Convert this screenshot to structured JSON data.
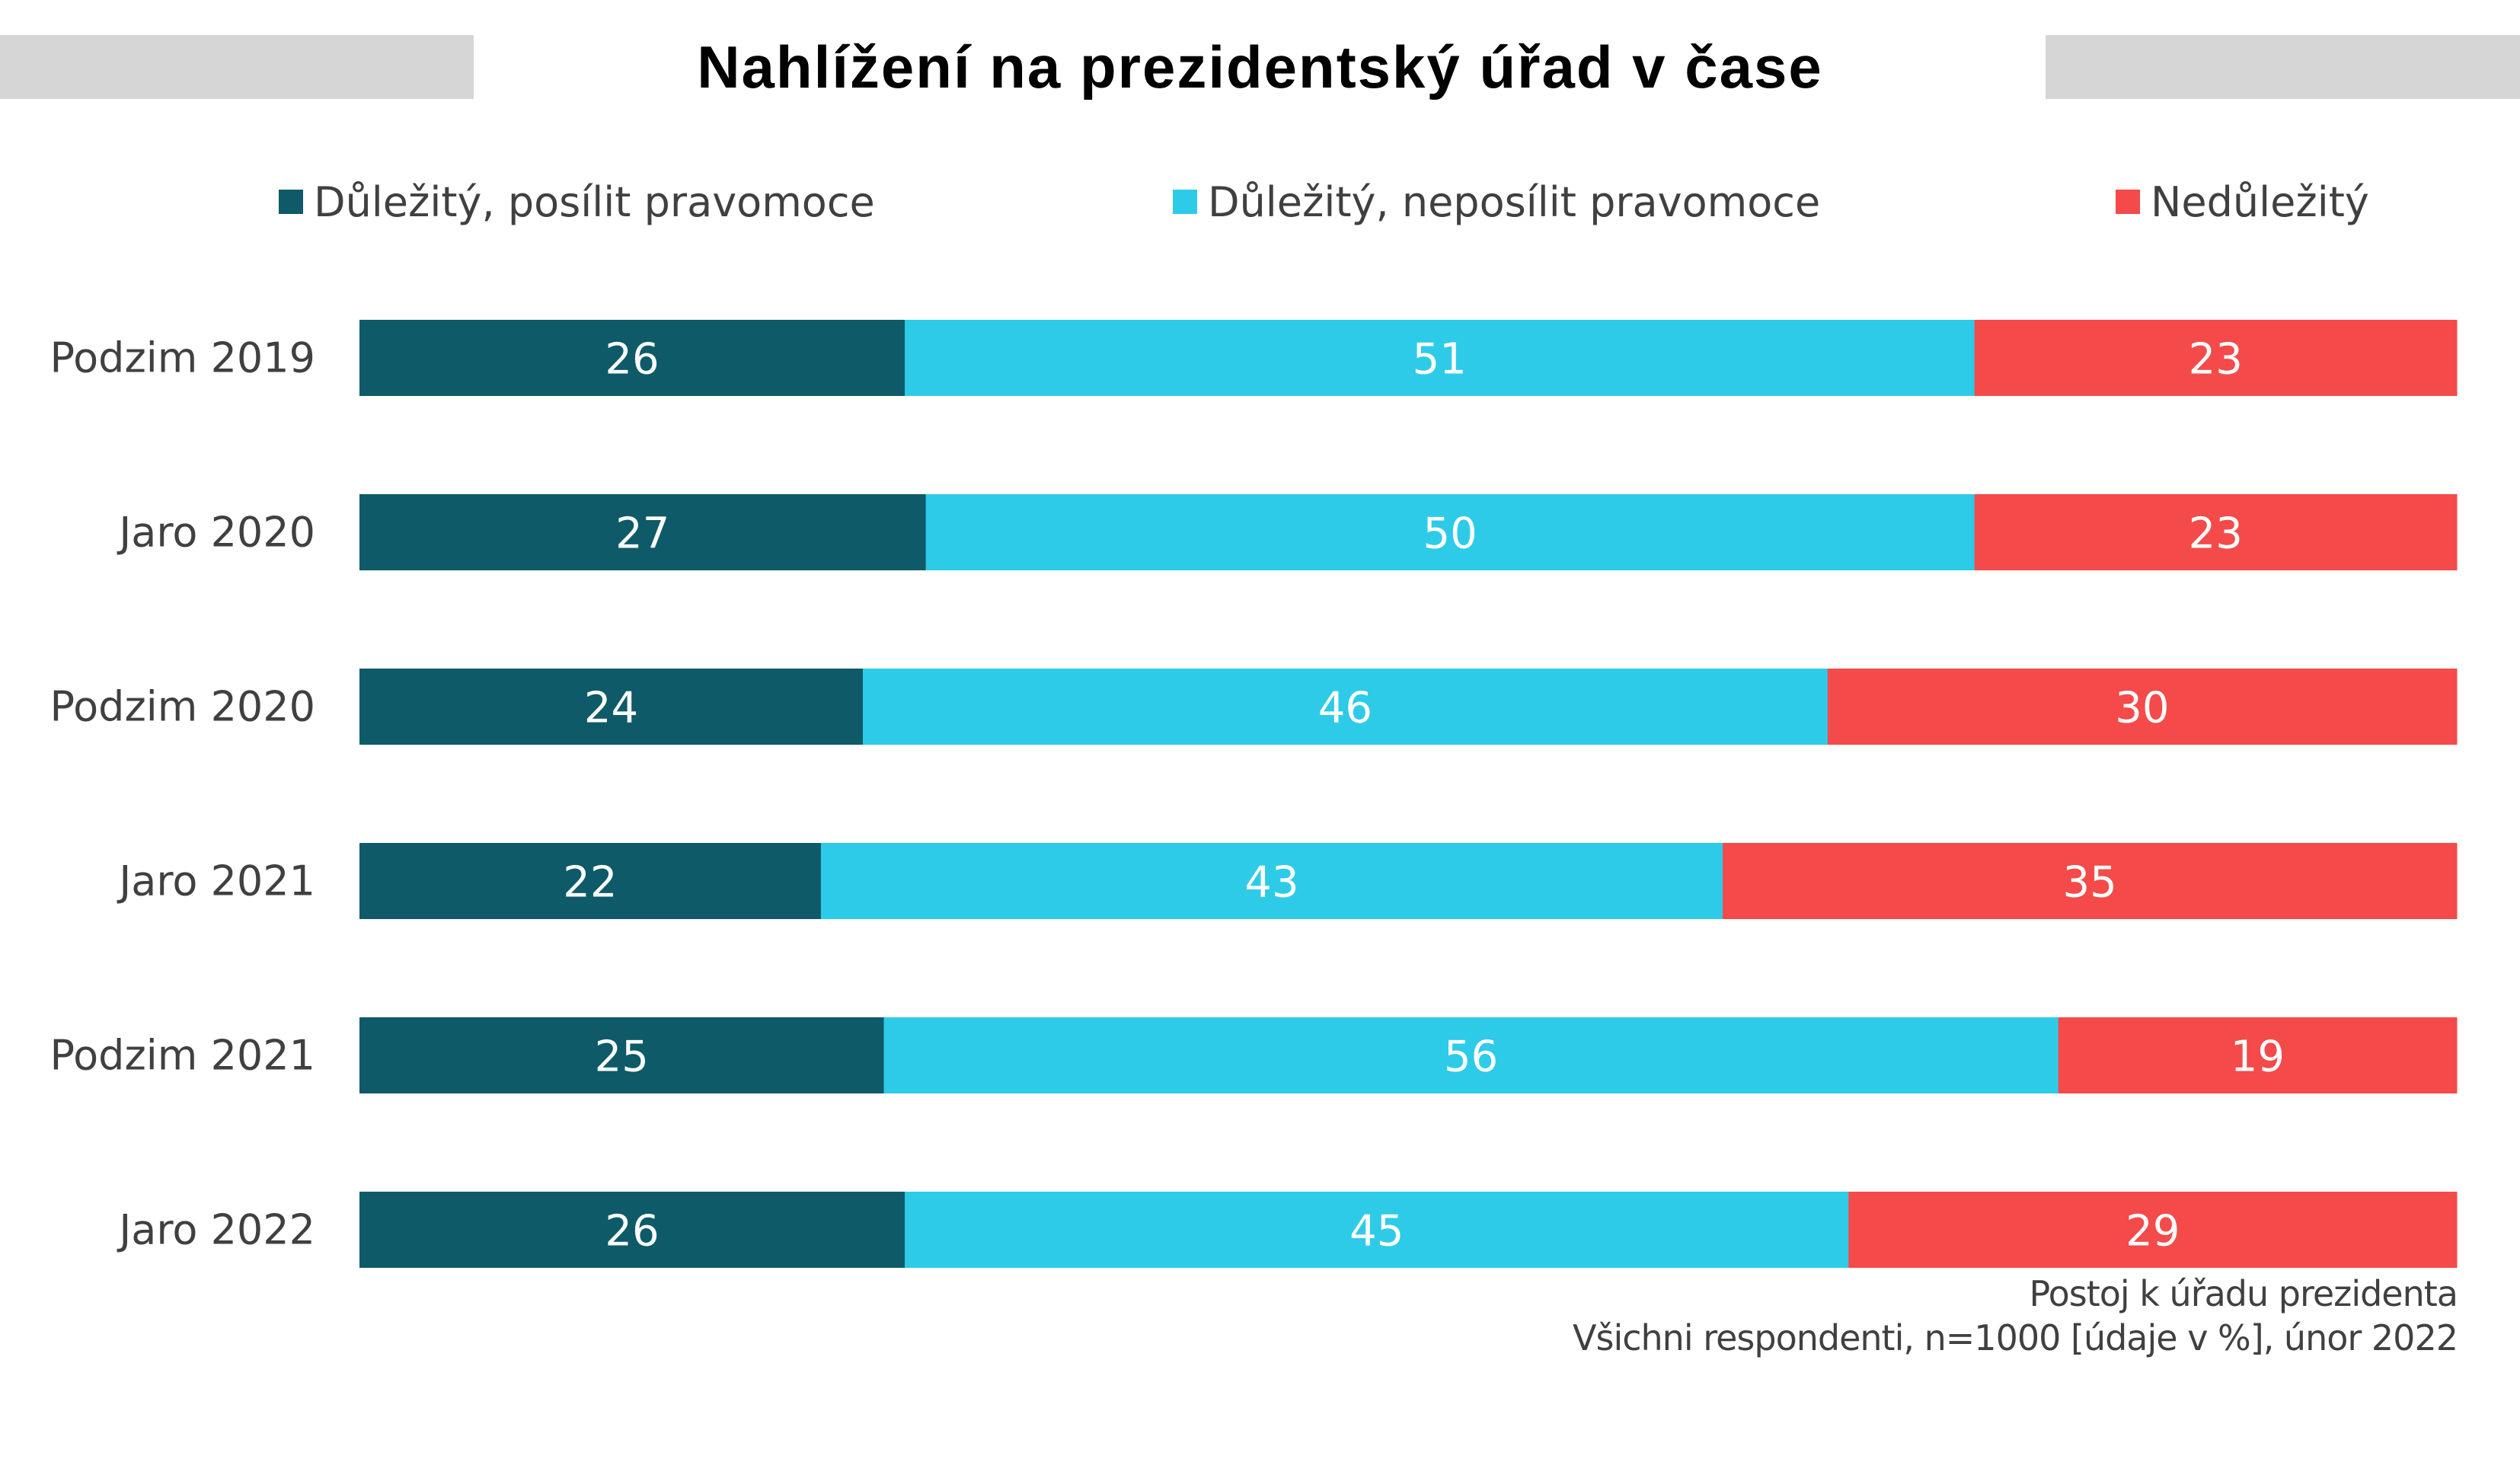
{
  "title": "Nahlížení na prezidentský úřad v čase",
  "notes": {
    "line1": "Postoj k úřadu prezidenta",
    "line2": "Všichni respondenti, n=1000 [údaje v %], únor 2022"
  },
  "chart_data": {
    "type": "bar",
    "orientation": "horizontal",
    "stacked": true,
    "title": "Nahlížení na prezidentský úřad v čase",
    "categories": [
      "Podzim 2019",
      "Jaro 2020",
      "Podzim 2020",
      "Jaro 2021",
      "Podzim 2021",
      "Jaro 2022"
    ],
    "series": [
      {
        "name": "Důležitý, posílit pravomoce",
        "color": "#0e5a68",
        "values": [
          26,
          27,
          24,
          22,
          25,
          26
        ]
      },
      {
        "name": "Důležitý, neposílit pravomoce",
        "color": "#2ecbe8",
        "values": [
          51,
          50,
          46,
          43,
          56,
          45
        ]
      },
      {
        "name": "Nedůležitý",
        "color": "#f44a4a",
        "values": [
          23,
          23,
          30,
          35,
          19,
          29
        ]
      }
    ],
    "xlim": [
      0,
      100
    ],
    "legend_position": "top",
    "data_labels": true,
    "grid": false
  }
}
